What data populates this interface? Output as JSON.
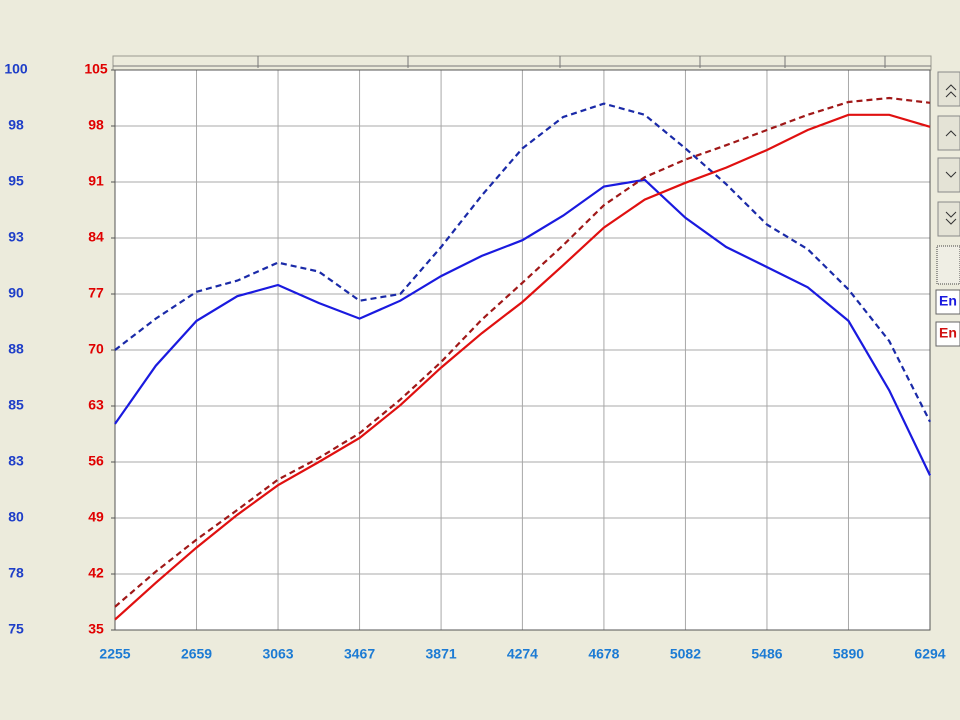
{
  "chart_data": {
    "type": "line",
    "x": [
      2255,
      2457,
      2659,
      2861,
      3063,
      3265,
      3467,
      3669,
      3871,
      4073,
      4274,
      4476,
      4678,
      4880,
      5082,
      5284,
      5486,
      5688,
      5890,
      6092,
      6294
    ],
    "xlim": [
      2255,
      6294
    ],
    "xticks": [
      2255,
      2659,
      3063,
      3467,
      3871,
      4274,
      4678,
      5082,
      5486,
      5890,
      6294
    ],
    "ylim": [
      75,
      100
    ],
    "yticks": [
      75,
      {
        "value": 77.5,
        "label": "78"
      },
      80,
      {
        "value": 82.5,
        "label": "83"
      },
      85,
      {
        "value": 87.5,
        "label": "88"
      },
      90,
      {
        "value": 92.5,
        "label": "93"
      },
      95,
      {
        "value": 97.5,
        "label": "98"
      },
      100
    ],
    "y2lim": [
      35,
      105
    ],
    "y2ticks": [
      35,
      42,
      49,
      56,
      63,
      70,
      77,
      84,
      91,
      98,
      105
    ],
    "ycolor": "#1e3ec8",
    "y2color": "#e00000",
    "xcolor": "#1c7bd4",
    "grid": true,
    "legend_entries": [
      {
        "label": "En",
        "color": "#1a1adf"
      },
      {
        "label": "En",
        "color": "#d01010"
      }
    ],
    "series": [
      {
        "color": "#1a1adf",
        "dash": false,
        "axis": "y",
        "values": [
          84.2,
          86.8,
          88.8,
          89.9,
          90.4,
          89.6,
          88.9,
          89.7,
          90.8,
          91.7,
          92.4,
          93.5,
          94.8,
          95.1,
          93.4,
          92.1,
          91.2,
          90.3,
          88.8,
          85.7,
          81.9
        ]
      },
      {
        "color": "#1a2aa8",
        "dash": true,
        "axis": "y",
        "values": [
          87.5,
          88.9,
          90.1,
          90.6,
          91.4,
          91.0,
          89.7,
          90.0,
          92.1,
          94.4,
          96.5,
          97.9,
          98.5,
          98.0,
          96.5,
          94.9,
          93.1,
          92.0,
          90.2,
          87.9,
          84.3
        ]
      },
      {
        "color": "#e01010",
        "dash": false,
        "axis": "y2",
        "values": [
          36.3,
          40.9,
          45.3,
          49.4,
          53.1,
          56.0,
          59.0,
          63.1,
          67.8,
          72.1,
          76.0,
          80.6,
          85.3,
          88.8,
          90.9,
          92.8,
          95.0,
          97.5,
          99.4,
          99.4,
          97.9
        ]
      },
      {
        "color": "#a01818",
        "dash": true,
        "axis": "y2",
        "values": [
          37.9,
          42.3,
          46.3,
          50.0,
          53.8,
          56.5,
          59.6,
          63.8,
          68.5,
          73.8,
          78.4,
          83.1,
          88.1,
          91.6,
          93.8,
          95.6,
          97.5,
          99.4,
          101.0,
          101.5,
          100.9
        ]
      }
    ]
  }
}
